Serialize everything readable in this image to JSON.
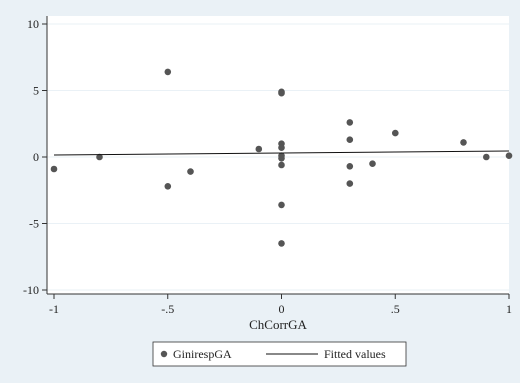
{
  "chart_data": {
    "type": "scatter",
    "xlabel": "ChCorrGA",
    "ylabel": "",
    "xlim": [
      -1,
      1
    ],
    "ylim": [
      -10,
      10
    ],
    "x_ticks": [
      -1,
      -0.5,
      0,
      0.5,
      1
    ],
    "x_tick_labels": [
      "-1",
      "-.5",
      "0",
      ".5",
      "1"
    ],
    "y_ticks": [
      -10,
      -5,
      0,
      5,
      10
    ],
    "y_tick_labels": [
      "-10",
      "-5",
      "0",
      "5",
      "10"
    ],
    "grid": "horizontal at y ticks",
    "legend_position": "bottom",
    "series": [
      {
        "name": "GinirespGA",
        "kind": "scatter",
        "color": "#555555",
        "points": [
          {
            "x": -1.0,
            "y": -0.9
          },
          {
            "x": -0.8,
            "y": 0.0
          },
          {
            "x": -0.5,
            "y": 6.4
          },
          {
            "x": -0.5,
            "y": -2.2
          },
          {
            "x": -0.4,
            "y": -1.1
          },
          {
            "x": -0.1,
            "y": 0.6
          },
          {
            "x": 0.0,
            "y": 4.9
          },
          {
            "x": 0.0,
            "y": 4.8
          },
          {
            "x": 0.0,
            "y": 1.0
          },
          {
            "x": 0.0,
            "y": 0.7
          },
          {
            "x": 0.0,
            "y": 0.1
          },
          {
            "x": 0.0,
            "y": -0.1
          },
          {
            "x": 0.0,
            "y": -0.6
          },
          {
            "x": 0.0,
            "y": -3.6
          },
          {
            "x": 0.0,
            "y": -6.5
          },
          {
            "x": 0.3,
            "y": 2.6
          },
          {
            "x": 0.3,
            "y": 1.3
          },
          {
            "x": 0.3,
            "y": -0.7
          },
          {
            "x": 0.3,
            "y": -2.0
          },
          {
            "x": 0.4,
            "y": -0.5
          },
          {
            "x": 0.5,
            "y": 1.8
          },
          {
            "x": 0.8,
            "y": 1.1
          },
          {
            "x": 0.9,
            "y": 0.0
          },
          {
            "x": 1.0,
            "y": 0.1
          }
        ]
      },
      {
        "name": "Fitted values",
        "kind": "line",
        "color": "#111111",
        "points": [
          {
            "x": -1.0,
            "y": 0.15
          },
          {
            "x": 1.0,
            "y": 0.45
          }
        ]
      }
    ]
  }
}
